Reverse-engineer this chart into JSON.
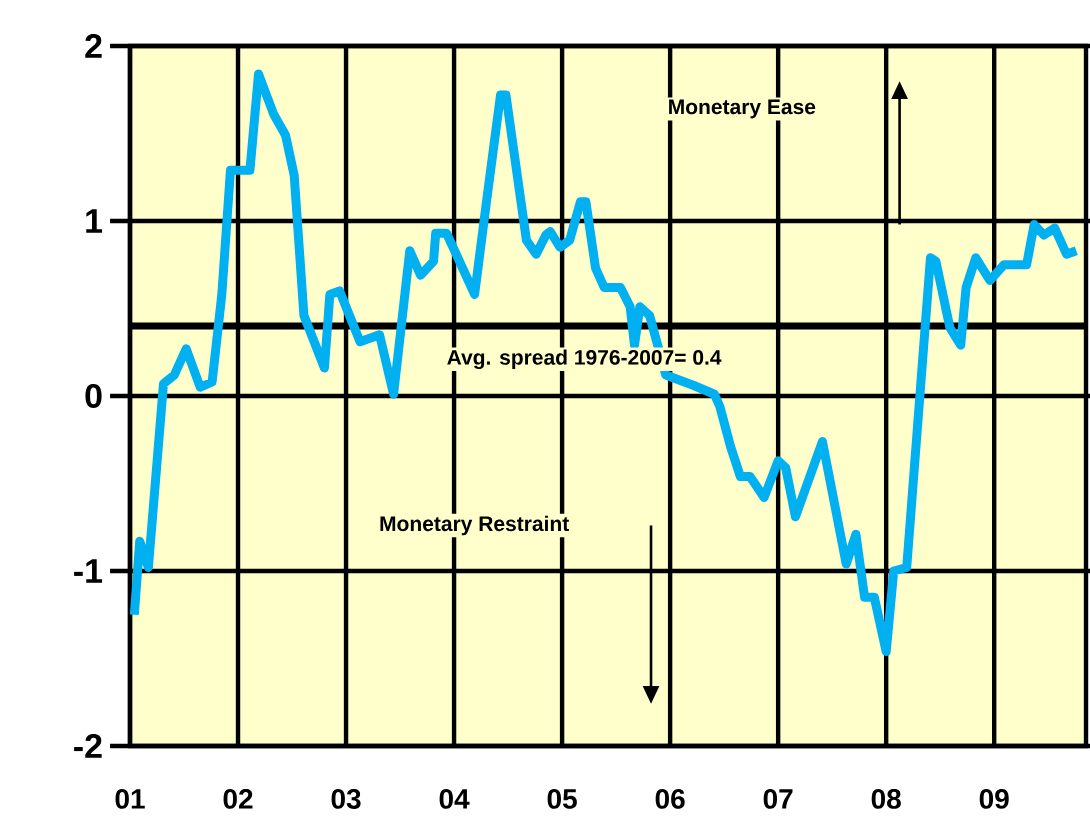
{
  "chart_data": {
    "type": "line",
    "x": [
      2001.04,
      2001.09,
      2001.17,
      2001.31,
      2001.41,
      2001.52,
      2001.65,
      2001.76,
      2001.85,
      2001.93,
      2002.11,
      2002.19,
      2002.33,
      2002.44,
      2002.52,
      2002.61,
      2002.8,
      2002.85,
      2002.94,
      2003.13,
      2003.31,
      2003.44,
      2003.59,
      2003.69,
      2003.81,
      2003.83,
      2003.93,
      2004.02,
      2004.19,
      2004.3,
      2004.43,
      2004.48,
      2004.61,
      2004.67,
      2004.76,
      2004.85,
      2004.89,
      2004.98,
      2005.07,
      2005.17,
      2005.22,
      2005.31,
      2005.39,
      2005.54,
      2005.63,
      2005.67,
      2005.72,
      2005.81,
      2005.96,
      2006.22,
      2006.41,
      2006.46,
      2006.56,
      2006.65,
      2006.74,
      2006.87,
      2007.0,
      2007.07,
      2007.16,
      2007.41,
      2007.63,
      2007.72,
      2007.8,
      2007.89,
      2008.0,
      2008.07,
      2008.19,
      2008.41,
      2008.46,
      2008.59,
      2008.69,
      2008.74,
      2008.83,
      2008.96,
      2009.09,
      2009.3,
      2009.37,
      2009.46,
      2009.56,
      2009.67,
      2009.76
    ],
    "series": [
      {
        "color": "#00b0f0",
        "values": [
          -1.25,
          -0.83,
          -0.98,
          0.07,
          0.12,
          0.27,
          0.05,
          0.08,
          0.58,
          1.29,
          1.29,
          1.84,
          1.61,
          1.49,
          1.26,
          0.46,
          0.16,
          0.58,
          0.6,
          0.31,
          0.35,
          0.01,
          0.83,
          0.69,
          0.77,
          0.93,
          0.93,
          0.81,
          0.58,
          1.11,
          1.72,
          1.72,
          1.15,
          0.89,
          0.81,
          0.92,
          0.94,
          0.85,
          0.89,
          1.11,
          1.11,
          0.73,
          0.62,
          0.62,
          0.51,
          0.29,
          0.51,
          0.46,
          0.12,
          0.06,
          0.01,
          -0.06,
          -0.29,
          -0.46,
          -0.46,
          -0.58,
          -0.37,
          -0.41,
          -0.69,
          -0.26,
          -0.96,
          -0.79,
          -1.15,
          -1.15,
          -1.46,
          -1.0,
          -0.98,
          0.79,
          0.77,
          0.39,
          0.29,
          0.62,
          0.79,
          0.66,
          0.75,
          0.75,
          0.98,
          0.92,
          0.96,
          0.81,
          0.83
        ]
      }
    ],
    "xlim": [
      2001,
      2009.85
    ],
    "xticks": [
      {
        "value": 2001,
        "label": "01"
      },
      {
        "value": 2002,
        "label": "02"
      },
      {
        "value": 2003,
        "label": "03"
      },
      {
        "value": 2004,
        "label": "04"
      },
      {
        "value": 2005,
        "label": "05"
      },
      {
        "value": 2006,
        "label": "06"
      },
      {
        "value": 2007,
        "label": "07"
      },
      {
        "value": 2008,
        "label": "08"
      },
      {
        "value": 2009,
        "label": "09"
      }
    ],
    "ylim": [
      -2,
      2
    ],
    "yticks": [
      -2,
      -1,
      0,
      1,
      2
    ],
    "grid": true,
    "ref_lines": [
      {
        "axis": "y",
        "value": 0.4,
        "label": "Avg. spread 1976-2007= 0.4",
        "color": "#000000"
      }
    ],
    "annotations": [
      "Monetary Ease",
      "Monetary Restraint"
    ]
  }
}
